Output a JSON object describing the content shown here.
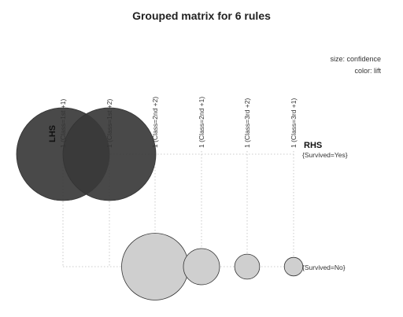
{
  "chart_data": {
    "type": "scatter",
    "title": "Grouped matrix for 6 rules",
    "size_legend": "size: confidence",
    "color_legend": "color: lift",
    "lhs_axis_label": "LHS",
    "rhs_axis_label": "RHS",
    "lhs_groups": [
      "1 (Class=1st +1)",
      "1 (Class=1st +2)",
      "1 (Class=2nd +2)",
      "1 (Class=2nd +1)",
      "1 (Class=3rd +2)",
      "1 (Class=3rd +1)"
    ],
    "rhs_items": [
      "{Survived=Yes}",
      "{Survived=No}"
    ],
    "rules": [
      {
        "lhs": 0,
        "rhs": 0,
        "size": 1.0,
        "color": "#3a3a3a"
      },
      {
        "lhs": 1,
        "rhs": 0,
        "size": 1.0,
        "color": "#3a3a3a"
      },
      {
        "lhs": 2,
        "rhs": 1,
        "size": 0.72,
        "color": "#cfcfcf"
      },
      {
        "lhs": 3,
        "rhs": 1,
        "size": 0.39,
        "color": "#cfcfcf"
      },
      {
        "lhs": 4,
        "rhs": 1,
        "size": 0.27,
        "color": "#cfcfcf"
      },
      {
        "lhs": 5,
        "rhs": 1,
        "size": 0.2,
        "color": "#cfcfcf"
      }
    ]
  }
}
